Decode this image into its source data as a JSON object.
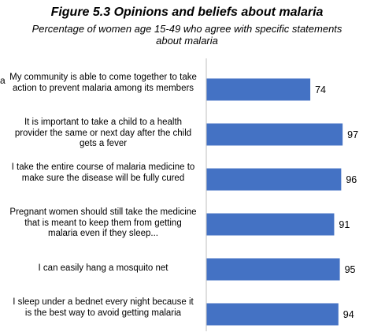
{
  "chart_data": {
    "type": "bar",
    "orientation": "horizontal",
    "title": "Figure 5.3 Opinions and beliefs about malaria",
    "subtitle": "Percentage of women age 15-49 who agree with specific statements about malaria",
    "categories": [
      "My community is able to come together to take action to prevent malaria among its members",
      "It is important to take a child to a health provider the same or next day after the child gets a fever",
      "I take the entire course of malaria medicine to make sure the disease will be fully cured",
      "Pregnant women should still take the medicine that is meant to keep them from getting malaria even if they sleep...",
      "I can easily hang a mosquito net",
      "I sleep under a bednet every night because it is the best way to avoid getting malaria"
    ],
    "values": [
      74,
      97,
      96,
      91,
      95,
      94
    ],
    "data_labels": [
      "74",
      "97",
      "96",
      "91",
      "95",
      "94"
    ],
    "xlim": [
      0,
      100
    ],
    "bar_color": "#4472c4",
    "grid": false,
    "left_edge_fragment": "a"
  }
}
